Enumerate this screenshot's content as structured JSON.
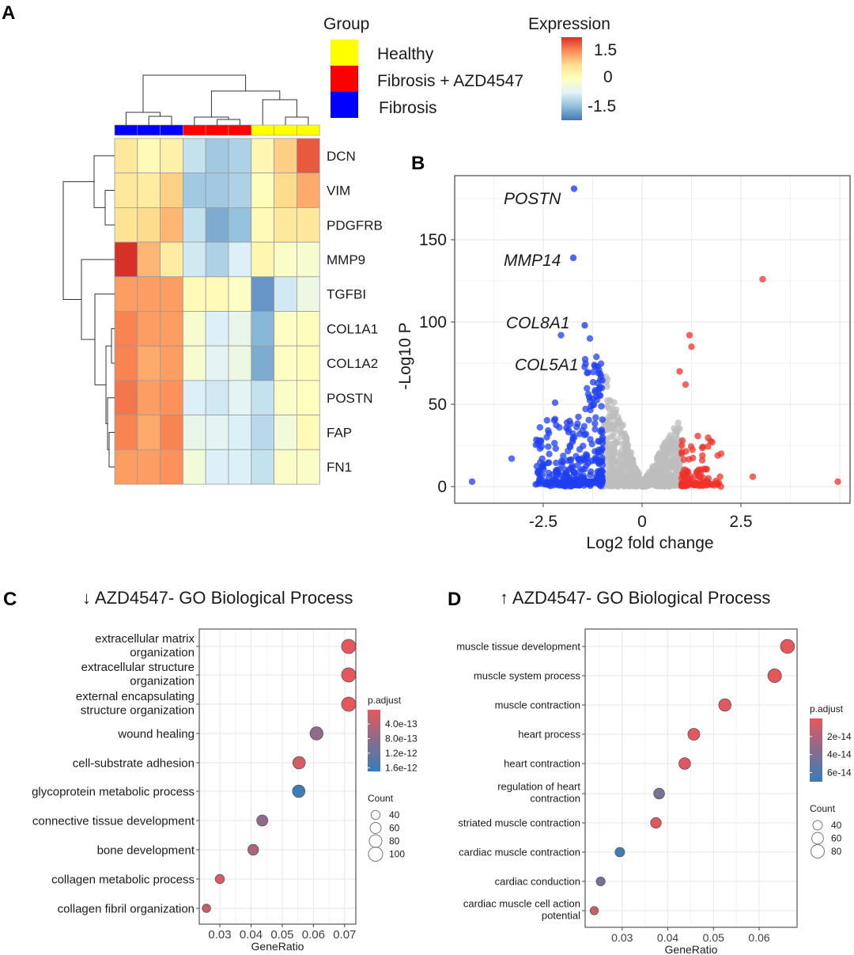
{
  "panel_letters": {
    "a": "A",
    "b": "B",
    "c": "C",
    "d": "D"
  },
  "chart_data": [
    {
      "type": "heatmap",
      "rows": [
        "DCN",
        "VIM",
        "PDGFRB",
        "MMP9",
        "TGFBI",
        "COL1A1",
        "COL1A2",
        "POSTN",
        "FAP",
        "FN1"
      ],
      "column_groups": [
        "Fibrosis",
        "Fibrosis",
        "Fibrosis",
        "Fibrosis + AZD4547",
        "Fibrosis + AZD4547",
        "Fibrosis + AZD4547",
        "Healthy",
        "Healthy",
        "Healthy"
      ],
      "values": [
        [
          0.5,
          0.1,
          0.3,
          -0.9,
          -1.2,
          -1.1,
          0.2,
          0.8,
          1.7
        ],
        [
          0.5,
          0.4,
          0.8,
          -1.2,
          -1.2,
          -1.1,
          0.05,
          0.7,
          1.1
        ],
        [
          0.6,
          0.7,
          1.0,
          -0.9,
          -1.5,
          -1.3,
          0.1,
          0.5,
          0.5
        ],
        [
          2.0,
          1.0,
          0.4,
          -0.8,
          -1.1,
          -0.7,
          0.2,
          -0.1,
          -0.2
        ],
        [
          1.2,
          1.2,
          1.2,
          0.1,
          0.1,
          -0.05,
          -1.7,
          -0.8,
          -0.4
        ],
        [
          1.4,
          1.2,
          1.2,
          -0.2,
          -0.7,
          -0.5,
          -1.4,
          -0.05,
          0.05
        ],
        [
          1.4,
          1.1,
          1.2,
          -0.2,
          -0.6,
          -0.4,
          -1.5,
          -0.05,
          0.05
        ],
        [
          1.5,
          1.2,
          1.3,
          -0.7,
          -0.8,
          -0.6,
          -0.9,
          -0.1,
          0.0
        ],
        [
          1.4,
          1.1,
          1.4,
          -0.5,
          -0.6,
          -0.7,
          -1.0,
          -0.3,
          0.1
        ],
        [
          1.2,
          1.2,
          1.3,
          -0.3,
          -0.7,
          -0.7,
          -0.9,
          -0.1,
          -0.1
        ]
      ],
      "group_legend": {
        "title": "Group",
        "entries": [
          {
            "label": "Healthy",
            "color": "#FFFF00"
          },
          {
            "label": "Fibrosis + AZD4547",
            "color": "#FF0000"
          },
          {
            "label": "Fibrosis",
            "color": "#0000FF"
          }
        ]
      },
      "color_legend": {
        "title": "Expression",
        "ticks": [
          "1.5",
          "0",
          "-1.5"
        ],
        "range": [
          -2,
          2
        ],
        "low_color": "#4575B4",
        "mid_color": "#FFFFBF",
        "high_color": "#D73027"
      }
    },
    {
      "type": "scatter",
      "xlabel": "Log2 fold change",
      "ylabel": "-Log10 P",
      "xlim": [
        -4.75,
        5.25
      ],
      "ylim": [
        -10,
        189
      ],
      "xticks": [
        "-2.5",
        "0",
        "2.5"
      ],
      "yticks": [
        "0",
        "50",
        "100",
        "150"
      ],
      "grid": true,
      "colors": {
        "down": "#1F3FF0",
        "ns": "#BEBEBE",
        "up": "#F0312A"
      },
      "labeled_points": [
        {
          "label": "POSTN",
          "x": -1.72,
          "y": 181
        },
        {
          "label": "MMP14",
          "x": -1.74,
          "y": 139
        },
        {
          "label": "COL8A1",
          "x": -1.45,
          "y": 98
        },
        {
          "label": "COL5A1",
          "x": -1.3,
          "y": 75
        }
      ],
      "points": [
        {
          "x": -2.05,
          "y": 92,
          "group": "down"
        },
        {
          "x": -1.32,
          "y": 90,
          "group": "down"
        },
        {
          "x": -4.3,
          "y": 3,
          "group": "down"
        },
        {
          "x": -3.3,
          "y": 17,
          "group": "down"
        },
        {
          "x": -2.2,
          "y": 51,
          "group": "down"
        },
        {
          "x": 3.05,
          "y": 126,
          "group": "up"
        },
        {
          "x": 1.2,
          "y": 92,
          "group": "up"
        },
        {
          "x": 1.25,
          "y": 85,
          "group": "up"
        },
        {
          "x": 0.95,
          "y": 70,
          "group": "up"
        },
        {
          "x": 1.1,
          "y": 62,
          "group": "up"
        },
        {
          "x": 4.95,
          "y": 3,
          "group": "up"
        },
        {
          "x": 2.8,
          "y": 6,
          "group": "up"
        },
        {
          "x": 2.0,
          "y": 20,
          "group": "up"
        }
      ]
    },
    {
      "type": "scatter",
      "title": "↓ AZD4547- GO Biological Process",
      "xlabel": "GeneRatio",
      "xlim": [
        0.0234,
        0.0736
      ],
      "xticks": [
        "0.03",
        "0.04",
        "0.05",
        "0.06",
        "0.07"
      ],
      "grid": true,
      "terms": [
        {
          "label": [
            "extracellular matrix",
            "organization"
          ],
          "gene_ratio": 0.0713,
          "count": 100,
          "p_adjust": 2e-14
        },
        {
          "label": [
            "extracellular structure",
            "organization"
          ],
          "gene_ratio": 0.0713,
          "count": 100,
          "p_adjust": 2e-14
        },
        {
          "label": [
            "external encapsulating",
            "structure organization"
          ],
          "gene_ratio": 0.0713,
          "count": 100,
          "p_adjust": 2e-14
        },
        {
          "label": [
            "wound healing"
          ],
          "gene_ratio": 0.061,
          "count": 85,
          "p_adjust": 8e-13
        },
        {
          "label": [
            "cell-substrate adhesion"
          ],
          "gene_ratio": 0.0554,
          "count": 77,
          "p_adjust": 1.5e-13
        },
        {
          "label": [
            "glycoprotein metabolic process"
          ],
          "gene_ratio": 0.0553,
          "count": 77,
          "p_adjust": 1.65e-12
        },
        {
          "label": [
            "connective tissue development"
          ],
          "gene_ratio": 0.0436,
          "count": 60,
          "p_adjust": 8e-13
        },
        {
          "label": [
            "bone development"
          ],
          "gene_ratio": 0.0407,
          "count": 57,
          "p_adjust": 4.5e-13
        },
        {
          "label": [
            "collagen metabolic process"
          ],
          "gene_ratio": 0.03,
          "count": 42,
          "p_adjust": 1.5e-13
        },
        {
          "label": [
            "collagen fibril organization"
          ],
          "gene_ratio": 0.0257,
          "count": 35,
          "p_adjust": 2.5e-13
        }
      ],
      "color_legend": {
        "title": "p.adjust",
        "ticks": [
          "4.0e-13",
          "8.0e-13",
          "1.2e-12",
          "1.6e-12"
        ],
        "tick_values": [
          4e-13,
          8e-13,
          1.2e-12,
          1.6e-12
        ],
        "range": [
          1e-14,
          1.7e-12
        ],
        "low_color": "#E8575A",
        "high_color": "#377EB8"
      },
      "size_legend": {
        "title": "Count",
        "ticks": [
          "40",
          "60",
          "80",
          "100"
        ],
        "tick_values": [
          40,
          60,
          80,
          100
        ]
      }
    },
    {
      "type": "scatter",
      "title": "↑ AZD4547- GO Biological Process",
      "xlabel": "GeneRatio",
      "xlim": [
        0.0219,
        0.0683
      ],
      "xticks": [
        "0.03",
        "0.04",
        "0.05",
        "0.06"
      ],
      "grid": true,
      "terms": [
        {
          "label": [
            "muscle tissue development"
          ],
          "gene_ratio": 0.0662,
          "count": 87,
          "p_adjust": 1e-15
        },
        {
          "label": [
            "muscle system process"
          ],
          "gene_ratio": 0.0634,
          "count": 82,
          "p_adjust": 1e-15
        },
        {
          "label": [
            "muscle contraction"
          ],
          "gene_ratio": 0.0525,
          "count": 68,
          "p_adjust": 3e-15
        },
        {
          "label": [
            "heart process"
          ],
          "gene_ratio": 0.0457,
          "count": 62,
          "p_adjust": 2e-15
        },
        {
          "label": [
            "heart contraction"
          ],
          "gene_ratio": 0.0437,
          "count": 60,
          "p_adjust": 3e-15
        },
        {
          "label": [
            "regulation of heart",
            "contraction"
          ],
          "gene_ratio": 0.0381,
          "count": 52,
          "p_adjust": 4.2e-14
        },
        {
          "label": [
            "striated muscle contraction"
          ],
          "gene_ratio": 0.0374,
          "count": 50,
          "p_adjust": 3e-15
        },
        {
          "label": [
            "cardiac muscle contraction"
          ],
          "gene_ratio": 0.0295,
          "count": 40,
          "p_adjust": 6.5e-14
        },
        {
          "label": [
            "cardiac conduction"
          ],
          "gene_ratio": 0.0253,
          "count": 35,
          "p_adjust": 4.2e-14
        },
        {
          "label": [
            "cardiac muscle cell action",
            "potential"
          ],
          "gene_ratio": 0.0239,
          "count": 30,
          "p_adjust": 1e-14
        }
      ],
      "color_legend": {
        "title": "p.adjust",
        "ticks": [
          "2e-14",
          "4e-14",
          "6e-14"
        ],
        "tick_values": [
          2e-14,
          4e-14,
          6e-14
        ],
        "range": [
          0,
          7e-14
        ],
        "low_color": "#E8575A",
        "high_color": "#377EB8"
      },
      "size_legend": {
        "title": "Count",
        "ticks": [
          "40",
          "60",
          "80"
        ],
        "tick_values": [
          40,
          60,
          80
        ]
      }
    }
  ]
}
